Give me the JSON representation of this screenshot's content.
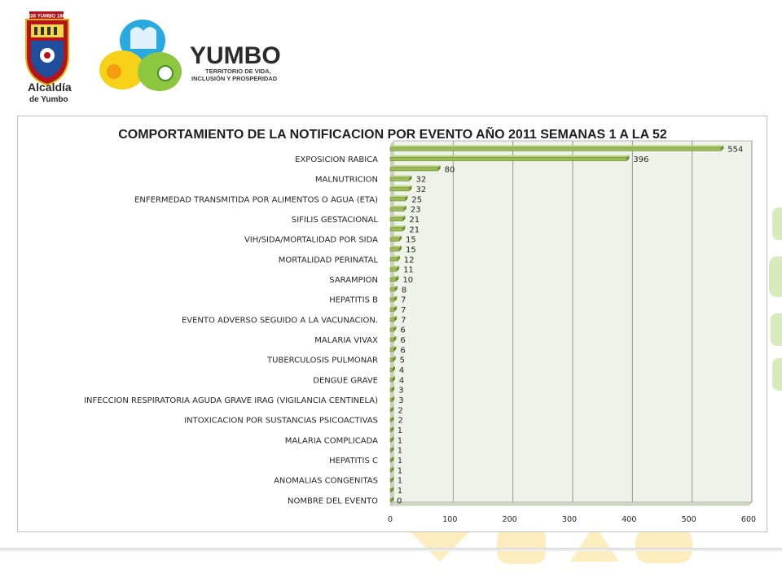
{
  "header": {
    "seal_banner": "1536 YUMBO 1864",
    "alcaldia_line1": "Alcaldía",
    "alcaldia_line2": "de Yumbo",
    "brand_name": "YUMBO",
    "brand_tagline_1": "TERRITORIO DE VIDA,",
    "brand_tagline_2": "INCLUSIÓN Y PROSPERIDAD"
  },
  "colors": {
    "bar_fill": "#9bbb59",
    "bar_dark": "#6b8a2f",
    "plot_bg": "#eef2e8",
    "brand_blue": "#1f4e9c",
    "brand_green": "#8dc63f",
    "brand_yellow": "#f7b500"
  },
  "chart_data": {
    "type": "bar",
    "orientation": "horizontal",
    "title": "COMPORTAMIENTO DE LA NOTIFICACION POR EVENTO AÑO 2011 SEMANAS 1 A LA 52",
    "xlabel": "",
    "ylabel": "",
    "xlim": [
      0,
      600
    ],
    "xticks": [
      "0",
      "100",
      "200",
      "300",
      "400",
      "500",
      "600"
    ],
    "grid": true,
    "legend": "none",
    "categories": [
      "",
      "EXPOSICION RABICA",
      "",
      "MALNUTRICION",
      "",
      "ENFERMEDAD TRANSMITIDA POR ALIMENTOS O AGUA (ETA)",
      "",
      "SIFILIS GESTACIONAL",
      "",
      "VIH/SIDA/MORTALIDAD POR SIDA",
      "",
      "MORTALIDAD PERINATAL",
      "",
      "SARAMPION",
      "",
      "HEPATITIS B",
      "",
      "EVENTO ADVERSO SEGUIDO A LA VACUNACION.",
      "",
      "MALARIA VIVAX",
      "",
      "TUBERCULOSIS PULMONAR",
      "",
      "DENGUE GRAVE",
      "",
      "INFECCION RESPIRATORIA AGUDA GRAVE IRAG (VIGILANCIA CENTINELA)",
      "",
      "INTOXICACION POR SUSTANCIAS PSICOACTIVAS",
      "",
      "MALARIA COMPLICADA",
      "",
      "HEPATITIS C",
      "",
      "ANOMALIAS CONGENITAS",
      "",
      "NOMBRE DEL EVENTO"
    ],
    "values": [
      554,
      396,
      80,
      32,
      32,
      25,
      23,
      21,
      21,
      15,
      15,
      12,
      11,
      10,
      8,
      7,
      7,
      7,
      6,
      6,
      6,
      5,
      4,
      4,
      3,
      3,
      2,
      2,
      1,
      1,
      1,
      1,
      1,
      1,
      1,
      0
    ]
  }
}
